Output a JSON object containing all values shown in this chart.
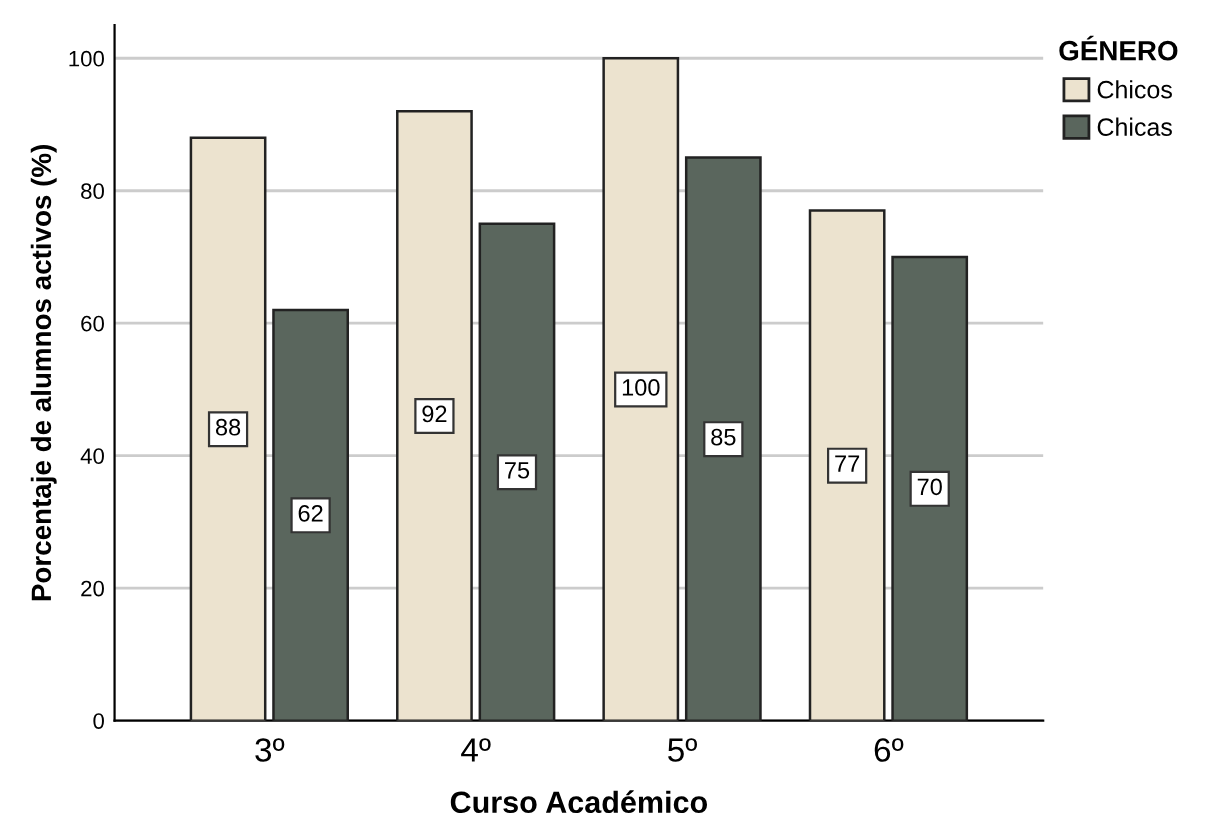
{
  "chart_data": {
    "type": "bar",
    "xlabel": "Curso Académico",
    "ylabel": "Porcentaje de alumnos activos (%)",
    "legend_title": "GÉNERO",
    "categories": [
      "3º",
      "4º",
      "5º",
      "6º"
    ],
    "series": [
      {
        "name": "Chicos",
        "color": "#ece3cf",
        "values": [
          88,
          92,
          100,
          77
        ]
      },
      {
        "name": "Chicas",
        "color": "#5a665d",
        "values": [
          62,
          75,
          85,
          70
        ]
      }
    ],
    "ylim": [
      0,
      105
    ],
    "yticks": [
      0,
      20,
      40,
      60,
      80,
      100
    ],
    "grid": "y",
    "legend": "top right",
    "data_labels": true
  }
}
